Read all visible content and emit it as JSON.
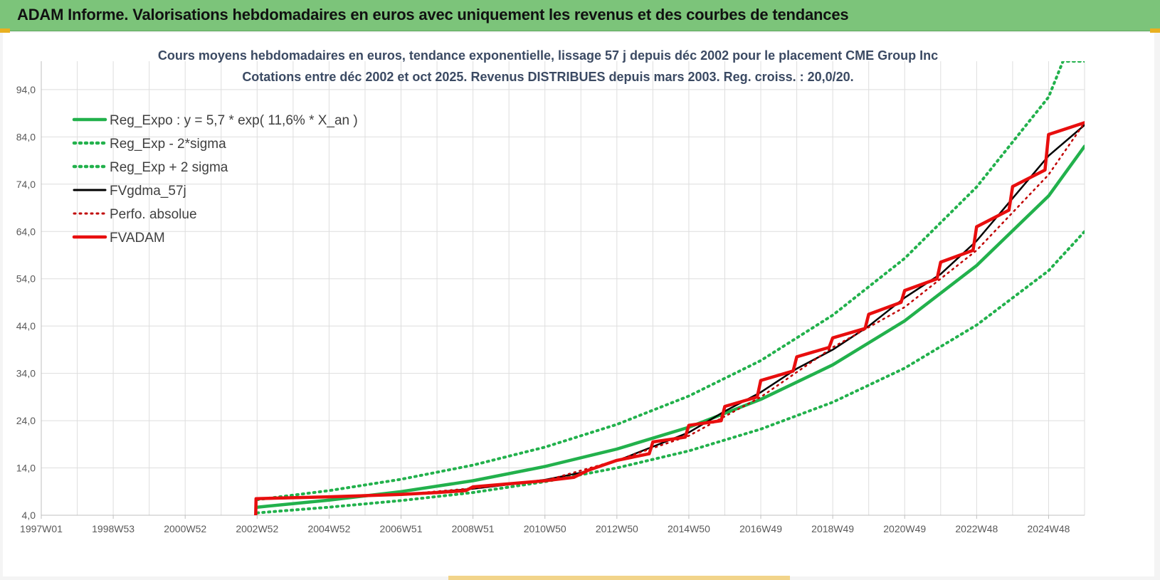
{
  "header": {
    "title": "ADAM Informe. Valorisations hebdomadaires en euros avec uniquement les revenus et des courbes de tendances",
    "color": "#7cc47a"
  },
  "chart_data": {
    "type": "line",
    "title": "Cours moyens hebdomadaires en euros, tendance exponentielle, lissage 57 j depuis déc 2002 pour le placement CME Group Inc",
    "subtitle": "Cotations entre déc 2002 et oct 2025. Revenus DISTRIBUES depuis mars 2003. Reg. croiss. : 20,0/20.",
    "xlabel": "",
    "ylabel": "",
    "x_ticks": [
      "1997W01",
      "1998W53",
      "2000W52",
      "2002W52",
      "2004W52",
      "2006W51",
      "2008W51",
      "2010W50",
      "2012W50",
      "2014W50",
      "2016W49",
      "2018W49",
      "2020W49",
      "2022W48",
      "2024W48"
    ],
    "x_tick_years": [
      1997,
      1999,
      2001,
      2003,
      2005,
      2007,
      2009,
      2011,
      2013,
      2015,
      2017,
      2019,
      2021,
      2023,
      2025
    ],
    "xlim": [
      1997,
      2026
    ],
    "y_ticks": [
      "4,0",
      "14,0",
      "24,0",
      "34,0",
      "44,0",
      "54,0",
      "64,0",
      "74,0",
      "84,0",
      "94,0"
    ],
    "y_tick_values": [
      4,
      14,
      24,
      34,
      44,
      54,
      64,
      74,
      84,
      94
    ],
    "ylim": [
      4,
      100
    ],
    "grid": true,
    "legend_position": "top-left",
    "series": [
      {
        "name": "Reg_Expo : y = 5,7 * exp( 11,6% *  X_an )",
        "color": "#22b14c",
        "style": "solid",
        "x": [
          2003,
          2005,
          2007,
          2009,
          2011,
          2013,
          2015,
          2017,
          2019,
          2021,
          2023,
          2025,
          2026
        ],
        "y": [
          5.7,
          7.2,
          9.0,
          11.3,
          14.3,
          18.0,
          22.6,
          28.5,
          35.8,
          45.1,
          56.8,
          71.5,
          82.0
        ]
      },
      {
        "name": "Reg_Exp - 2*sigma",
        "color": "#22b14c",
        "style": "dotted",
        "x": [
          2003,
          2005,
          2007,
          2009,
          2011,
          2013,
          2015,
          2017,
          2019,
          2021,
          2023,
          2025,
          2026
        ],
        "y": [
          4.5,
          5.7,
          7.1,
          8.8,
          11.1,
          14.0,
          17.6,
          22.2,
          27.9,
          35.1,
          44.2,
          55.7,
          64.0
        ]
      },
      {
        "name": "Reg_Exp + 2 sigma",
        "color": "#22b14c",
        "style": "dotted",
        "x": [
          2003,
          2005,
          2007,
          2009,
          2011,
          2013,
          2015,
          2017,
          2019,
          2021,
          2023,
          2025,
          2025.4,
          2026
        ],
        "y": [
          7.3,
          9.2,
          11.6,
          14.6,
          18.4,
          23.2,
          29.2,
          36.7,
          46.3,
          58.3,
          73.4,
          92.4,
          100,
          100
        ]
      },
      {
        "name": "FVgdma_57j",
        "color": "#000000",
        "style": "solid",
        "x": [
          2003,
          2005,
          2007,
          2009,
          2010,
          2011,
          2012,
          2013,
          2014,
          2015,
          2016,
          2017,
          2018,
          2019,
          2020,
          2021,
          2022,
          2023,
          2024,
          2025,
          2026
        ],
        "y": [
          7.4,
          7.8,
          8.3,
          9.6,
          10.5,
          11.5,
          13.0,
          15.5,
          18.5,
          21.5,
          26.0,
          30.0,
          35.0,
          39.0,
          44.0,
          50.0,
          55.0,
          62.0,
          71.0,
          80.0,
          86.5
        ]
      },
      {
        "name": "Perfo. absolue",
        "color": "#c00000",
        "style": "dotted",
        "x": [
          2003,
          2005,
          2007,
          2009,
          2011,
          2013,
          2015,
          2017,
          2019,
          2021,
          2023,
          2025,
          2026
        ],
        "y": [
          7.5,
          7.9,
          8.4,
          9.7,
          11.3,
          15.6,
          20.8,
          29.0,
          39.5,
          48.0,
          60.0,
          76.0,
          87.0
        ]
      },
      {
        "name": "FVADAM",
        "color": "#e80e0e",
        "style": "solid",
        "x": [
          2002.96,
          2002.97,
          2005,
          2007,
          2008,
          2008.8,
          2009,
          2011,
          2011.8,
          2012.2,
          2013,
          2013.9,
          2014,
          2014.9,
          2015,
          2015.9,
          2016,
          2016.9,
          2017,
          2017.9,
          2018,
          2018.9,
          2019,
          2019.9,
          2020,
          2020.9,
          2021,
          2021.9,
          2022,
          2022.9,
          2023,
          2023.9,
          2024,
          2024.9,
          2025,
          2026
        ],
        "y": [
          4.0,
          7.5,
          7.9,
          8.4,
          8.8,
          9.2,
          10.0,
          11.3,
          12.0,
          13.5,
          15.6,
          17.0,
          19.5,
          20.5,
          23.0,
          24.0,
          27.0,
          29.0,
          32.5,
          34.5,
          37.5,
          39.5,
          41.5,
          43.5,
          46.5,
          49.0,
          51.5,
          54.0,
          57.5,
          60.0,
          65.0,
          68.5,
          73.5,
          77.0,
          84.5,
          87.0
        ]
      }
    ]
  }
}
